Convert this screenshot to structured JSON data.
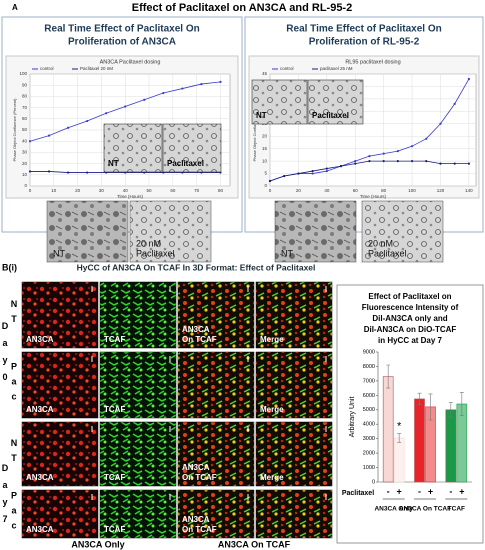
{
  "figure": {
    "panel_a_label": "A",
    "title": "Effect of Paclitaxel on AN3CA and RL-95-2",
    "panels": [
      {
        "heading": [
          "Real Time Effect of Paclitaxel On",
          "Proliferation of AN3CA"
        ],
        "inset_labels": [
          "NT",
          "Paclitaxel"
        ],
        "micrograph_labels": [
          [
            "NT"
          ],
          [
            "20 nM",
            "Paclitaxel"
          ]
        ]
      },
      {
        "heading": [
          "Real Time Effect of Paclitaxel On",
          "Proliferation of RL-95-2"
        ],
        "inset_labels": [
          "NT",
          "Paclitaxel"
        ],
        "micrograph_labels": [
          [
            "NT"
          ],
          [
            "20 nM",
            "Paclitaxel"
          ]
        ]
      }
    ],
    "panel_b_label": "B(i)",
    "panel_b_title": "HyCC of AN3CA On TCAF In 3D Format: Effect of Paclitaxel",
    "days": [
      [
        "D",
        "a",
        "y",
        "0"
      ],
      [
        "D",
        "a",
        "y",
        "7"
      ]
    ],
    "rows": [
      {
        "treatment": [
          "N",
          "T"
        ],
        "cells": [
          [
            "AN3CA"
          ],
          [
            "TCAF"
          ],
          [
            "AN3CA",
            "On TCAF"
          ],
          [
            "Merge"
          ]
        ]
      },
      {
        "treatment": [
          "P",
          "a",
          "c"
        ],
        "cells": [
          [
            "AN3CA"
          ],
          [
            "TCAF"
          ],
          null,
          [
            "Merge"
          ]
        ]
      },
      {
        "treatment": [
          "N",
          "T"
        ],
        "cells": [
          [
            "AN3CA"
          ],
          [
            "TCAF"
          ],
          [
            "AN3CA",
            "On TCAF"
          ],
          [
            "Merge"
          ]
        ]
      },
      {
        "treatment": [
          "P",
          "a",
          "c"
        ],
        "cells": [
          [
            "AN3CA"
          ],
          [
            "TCAF"
          ],
          [
            "AN3CA",
            "On TCAF"
          ],
          null
        ]
      }
    ],
    "column_groups": [
      "AN3CA Only",
      "AN3CA On TCAF"
    ]
  },
  "chart_data": [
    {
      "type": "line",
      "title": "AN3CA Paclitaxel dosing",
      "x_label": "Time (Hours)",
      "y_label": "Phase Object Confluence (Percent)",
      "x": [
        0,
        8,
        16,
        24,
        32,
        40,
        48,
        56,
        64,
        72,
        80
      ],
      "series": [
        {
          "name": "control",
          "color": "#3a3ad0",
          "values": [
            40,
            45,
            52,
            58,
            65,
            71,
            77,
            83,
            87,
            91,
            93
          ]
        },
        {
          "name": "Paclitaxel 20 nM",
          "color": "#1a1a80",
          "values": [
            13,
            13,
            12,
            12,
            12,
            12,
            12,
            12,
            12,
            12,
            12
          ]
        }
      ],
      "xlim": [
        0,
        84
      ],
      "xticks": [
        0,
        10,
        20,
        30,
        40,
        50,
        60,
        70,
        80
      ],
      "ylim": [
        0,
        100
      ],
      "yticks": [
        0,
        10,
        20,
        30,
        40,
        50,
        60,
        70,
        80,
        90,
        100
      ],
      "grid": true
    },
    {
      "type": "line",
      "title": "RL95 paclitaxel dosing",
      "x_label": "Time (Hours)",
      "y_label": "Phase Object Confluence (Percent)",
      "x": [
        0,
        10,
        20,
        30,
        40,
        50,
        60,
        70,
        80,
        90,
        100,
        110,
        120,
        130,
        140
      ],
      "series": [
        {
          "name": "control",
          "color": "#3a3ad0",
          "values": [
            2,
            4,
            5,
            5,
            6,
            8,
            10,
            12,
            13,
            14,
            16,
            19,
            25,
            33,
            43
          ]
        },
        {
          "name": "paclitaxel 25 nM",
          "color": "#1a1a80",
          "values": [
            2,
            4,
            5,
            6,
            7,
            8,
            9,
            10,
            10,
            10,
            10,
            10,
            9,
            9,
            9
          ]
        }
      ],
      "xlim": [
        0,
        145
      ],
      "xticks": [
        0,
        20,
        40,
        60,
        80,
        100,
        120,
        140
      ],
      "ylim": [
        0,
        45
      ],
      "yticks": [
        0,
        5,
        10,
        15,
        20,
        25,
        30,
        35,
        40,
        45
      ],
      "grid": true
    },
    {
      "type": "bar",
      "title": [
        "Effect of Paclitaxel on",
        "Fluorescence Intensity of",
        "DiI-AN3CA only and",
        "DiI-AN3CA on DiO-TCAF",
        "in HyCC at Day 7"
      ],
      "y_label": "Arbitrary Unit",
      "x_label": "Paclitaxel",
      "categories": [
        "AN3CA Only",
        "AN3CA On TCAF",
        "TCAF"
      ],
      "series": [
        {
          "name": "-",
          "colors": [
            "#f8d8d4",
            "#e8242a",
            "#1a9a48"
          ],
          "values": [
            7300,
            5750,
            5000
          ],
          "errors": [
            800,
            400,
            500
          ]
        },
        {
          "name": "+",
          "colors": [
            "#fdf0ee",
            "#f28c8c",
            "#7cc998"
          ],
          "values": [
            3050,
            5200,
            5400
          ],
          "errors": [
            300,
            900,
            800
          ],
          "significance": [
            "*",
            null,
            null
          ]
        }
      ],
      "ylim": [
        0,
        9000
      ],
      "yticks": [
        0,
        1000,
        2000,
        3000,
        4000,
        5000,
        6000,
        7000,
        8000,
        9000
      ]
    }
  ]
}
